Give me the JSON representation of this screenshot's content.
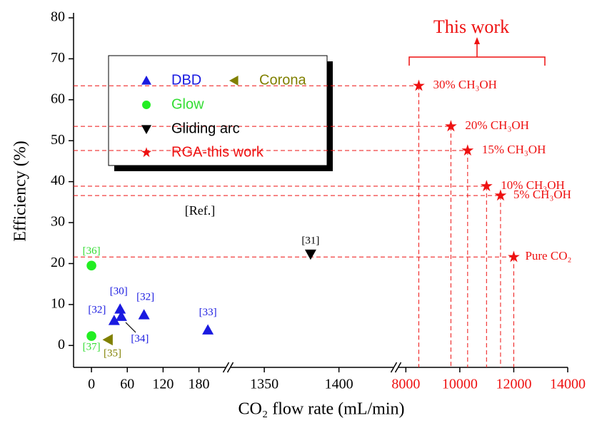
{
  "chart_data": {
    "type": "scatter",
    "xlabel": "CO₂ flow rate (mL/min)",
    "ylabel": "Efficiency (%)",
    "ylim": [
      -5,
      80
    ],
    "yticks": [
      0,
      10,
      20,
      30,
      40,
      50,
      60,
      70,
      80
    ],
    "x_segments": [
      {
        "xlim": [
          -30,
          226
        ],
        "xticks": [
          0,
          60,
          120,
          180
        ],
        "color": "#000000"
      },
      {
        "xlim": [
          1327,
          1437
        ],
        "xticks": [
          1350,
          1400
        ],
        "color": "#000000"
      },
      {
        "xlim": [
          7700,
          14000
        ],
        "xticks": [
          8000,
          10000,
          12000,
          14000
        ],
        "color": "#ee1111"
      }
    ],
    "series": [
      {
        "name": "DBD",
        "color": "#1a1ae0",
        "marker": "triangle-up",
        "segment": 0,
        "x": [
          38,
          48,
          50,
          88,
          195
        ],
        "values": [
          6.1,
          8.9,
          7.1,
          7.5,
          3.8
        ],
        "point_labels": [
          "[32]",
          "[30]",
          "[34]",
          "[32]",
          "[33]"
        ]
      },
      {
        "name": "Corona",
        "color": "#808000",
        "marker": "triangle-left",
        "segment": 0,
        "x": [
          28
        ],
        "values": [
          1.4
        ],
        "point_labels": [
          "[35]"
        ]
      },
      {
        "name": "Glow",
        "color": "#22ee22",
        "marker": "circle",
        "segment": 0,
        "x": [
          0,
          0
        ],
        "values": [
          19.5,
          2.3
        ],
        "point_labels": [
          "[36]",
          "[37]"
        ]
      },
      {
        "name": "Gliding arc",
        "color": "#000000",
        "marker": "triangle-down",
        "segment": 1,
        "x": [
          1381
        ],
        "values": [
          22.3
        ],
        "point_labels": [
          "[31]"
        ]
      },
      {
        "name": "RGA-this work",
        "color": "#ee1111",
        "marker": "star",
        "segment": 2,
        "x": [
          8480,
          9670,
          10290,
          10990,
          11510,
          12000
        ],
        "values": [
          63.4,
          53.5,
          47.6,
          38.9,
          36.6,
          21.6
        ],
        "point_labels": [
          "30% CH₃OH",
          "20% CH₃OH",
          "15% CH₃OH",
          "10% CH₃OH",
          "5% CH₃OH",
          "Pure CO₂"
        ]
      }
    ],
    "annotations": [
      "[Ref.]",
      "This work"
    ]
  }
}
